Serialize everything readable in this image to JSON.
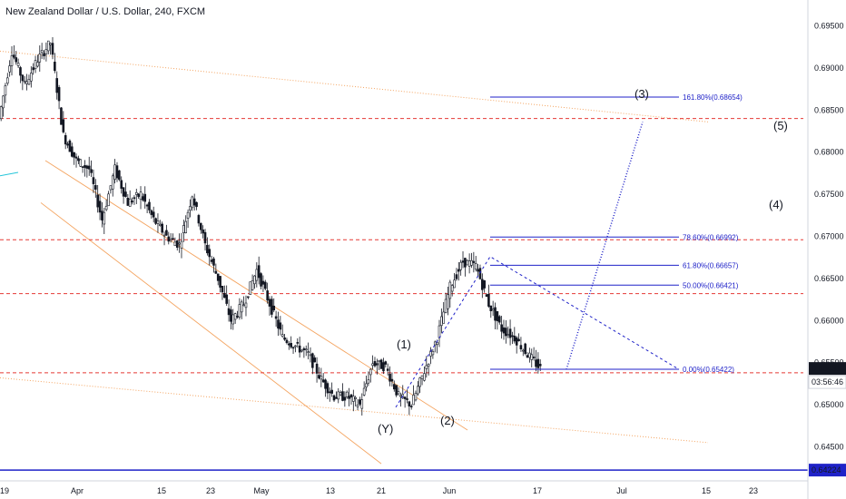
{
  "header": {
    "title": "New Zealand Dollar / U.S. Dollar, 240, FXCM"
  },
  "price_scale": {
    "ticks": [
      "0.69500",
      "0.69000",
      "0.68500",
      "0.68000",
      "0.67500",
      "0.67000",
      "0.66500",
      "0.66000",
      "0.65500",
      "0.65000",
      "0.64500"
    ],
    "current_price": "0.65431",
    "countdown": "03:56:46",
    "low_marker": "0.64224"
  },
  "time_scale": {
    "ticks": [
      "19",
      "Apr",
      "15",
      "23",
      "May",
      "13",
      "21",
      "Jun",
      "17",
      "Jul",
      "15",
      "23"
    ]
  },
  "waves": {
    "w1": "(1)",
    "w2": "(2)",
    "w3": "(3)",
    "w4": "(4)",
    "w5": "(5)",
    "wy": "(Y)"
  },
  "fib_levels": [
    {
      "label": "161.80%(0.68654)",
      "price": 0.68654
    },
    {
      "label": "78.60%(0.66992)",
      "price": 0.66992
    },
    {
      "label": "61.80%(0.66657)",
      "price": 0.66657
    },
    {
      "label": "50.00%(0.66421)",
      "price": 0.66421
    },
    {
      "label": "0.00%(0.65422)",
      "price": 0.65422
    }
  ],
  "colors": {
    "candle": "#131722",
    "resistance": "#e53935",
    "channel": "#f4a460",
    "fib": "#1f22c8",
    "price_tag": "#131722",
    "low_tag": "#1f22c8"
  },
  "chart_data": {
    "type": "candlestick",
    "title": "New Zealand Dollar / U.S. Dollar, 240, FXCM",
    "ylim": [
      0.6415,
      0.697
    ],
    "horizontal_levels": [
      0.684,
      0.6696,
      0.6632,
      0.6538
    ],
    "grid": false,
    "path": [
      [
        0,
        0.684
      ],
      [
        2,
        0.692
      ],
      [
        4,
        0.688
      ],
      [
        6,
        0.691
      ],
      [
        8,
        0.693
      ],
      [
        10,
        0.682
      ],
      [
        12,
        0.679
      ],
      [
        14,
        0.678
      ],
      [
        16,
        0.672
      ],
      [
        18,
        0.678
      ],
      [
        20,
        0.674
      ],
      [
        22,
        0.675
      ],
      [
        24,
        0.672
      ],
      [
        26,
        0.67
      ],
      [
        28,
        0.669
      ],
      [
        30,
        0.675
      ],
      [
        32,
        0.669
      ],
      [
        34,
        0.665
      ],
      [
        36,
        0.66
      ],
      [
        38,
        0.662
      ],
      [
        40,
        0.666
      ],
      [
        42,
        0.662
      ],
      [
        44,
        0.658
      ],
      [
        46,
        0.657
      ],
      [
        48,
        0.656
      ],
      [
        50,
        0.653
      ],
      [
        52,
        0.651
      ],
      [
        54,
        0.651
      ],
      [
        56,
        0.65
      ],
      [
        58,
        0.655
      ],
      [
        60,
        0.6545
      ],
      [
        62,
        0.651
      ],
      [
        64,
        0.65
      ],
      [
        66,
        0.654
      ],
      [
        68,
        0.658
      ],
      [
        70,
        0.664
      ],
      [
        72,
        0.667
      ],
      [
        74,
        0.6665
      ],
      [
        76,
        0.662
      ],
      [
        78,
        0.659
      ],
      [
        80,
        0.658
      ],
      [
        82,
        0.656
      ],
      [
        84,
        0.6543
      ]
    ],
    "wave_points": {
      "Y": 0.6497,
      "1": 0.6556,
      "2": 0.65,
      "3": 0.6839,
      "4": 0.6722,
      "5": 0.6828
    }
  }
}
